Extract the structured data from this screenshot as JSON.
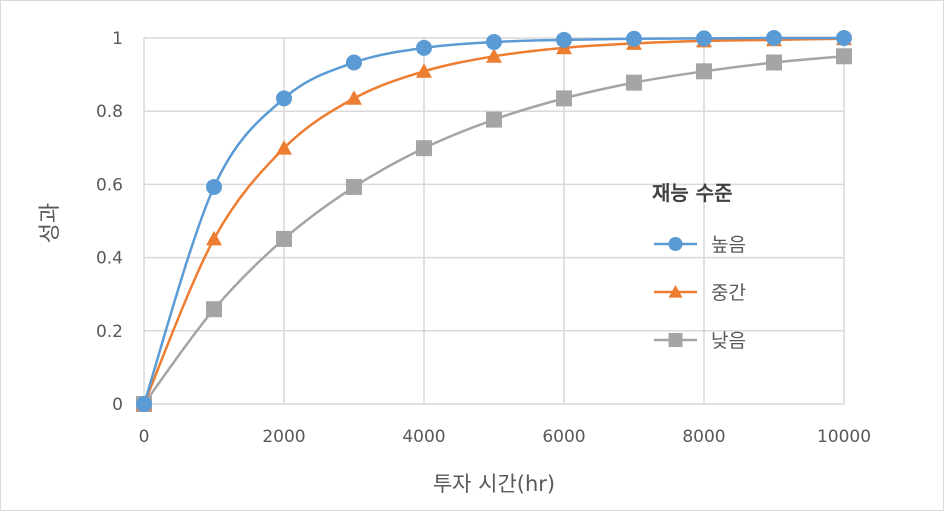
{
  "chart_data": {
    "type": "line",
    "title": "",
    "xlabel": "투자 시간(hr)",
    "ylabel": "성과",
    "x": [
      0,
      1000,
      2000,
      3000,
      4000,
      5000,
      6000,
      7000,
      8000,
      9000,
      10000
    ],
    "xlim": [
      0,
      10000
    ],
    "ylim": [
      0,
      1
    ],
    "x_ticks": [
      "0",
      "2000",
      "4000",
      "6000",
      "8000",
      "10000"
    ],
    "y_ticks": [
      "0",
      "0.2",
      "0.4",
      "0.6",
      "0.8",
      "1"
    ],
    "grid": true,
    "legend_title": "재능 수준",
    "legend_position": "right",
    "series": [
      {
        "name": "높음",
        "color": "#5b9bd5",
        "marker": "circle",
        "values": [
          0,
          0.593,
          0.835,
          0.933,
          0.973,
          0.989,
          0.995,
          0.998,
          0.999,
          1.0,
          1.0
        ]
      },
      {
        "name": "중간",
        "color": "#ed7d31",
        "marker": "triangle",
        "values": [
          0,
          0.451,
          0.699,
          0.835,
          0.909,
          0.95,
          0.973,
          0.985,
          0.992,
          0.995,
          0.998
        ]
      },
      {
        "name": "낮음",
        "color": "#a5a5a5",
        "marker": "square",
        "values": [
          0,
          0.259,
          0.451,
          0.593,
          0.699,
          0.777,
          0.835,
          0.878,
          0.909,
          0.933,
          0.95
        ]
      }
    ]
  }
}
